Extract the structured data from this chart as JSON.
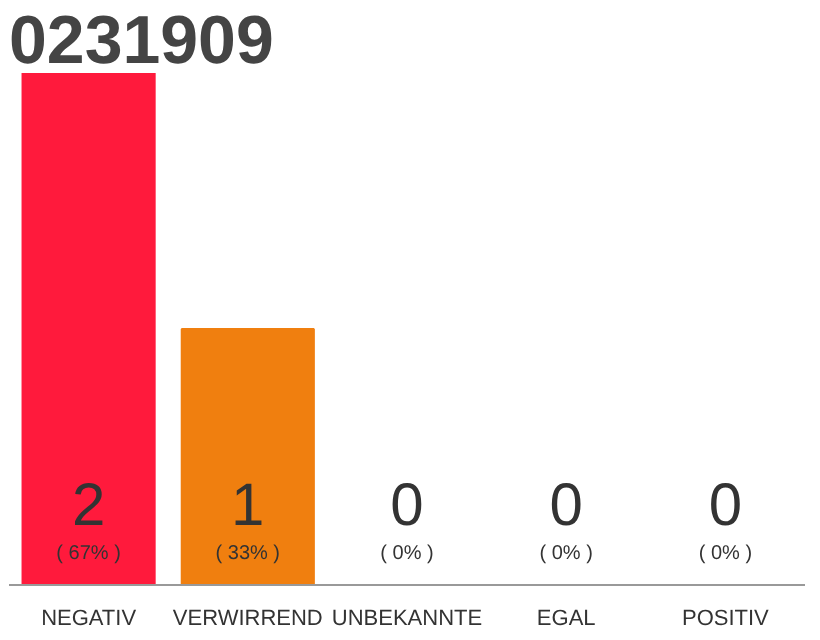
{
  "chart_data": {
    "type": "bar",
    "title": "0231909",
    "categories": [
      "NEGATIV",
      "VERWIRREND",
      "UNBEKANNTE",
      "EGAL",
      "POSITIV"
    ],
    "values": [
      2,
      1,
      0,
      0,
      0
    ],
    "colors": [
      "#ff1a3c",
      "#f07f0f",
      "#eeeeee",
      "#eeeeee",
      "#eeeeee"
    ],
    "tick_labels": "x",
    "grid": false,
    "value_labels": [
      "2",
      "1",
      "0",
      "0",
      "0"
    ],
    "annotations": [
      "( 67% )",
      "( 33% )",
      "( 0% )",
      "( 0% )",
      "( 0% )"
    ]
  }
}
